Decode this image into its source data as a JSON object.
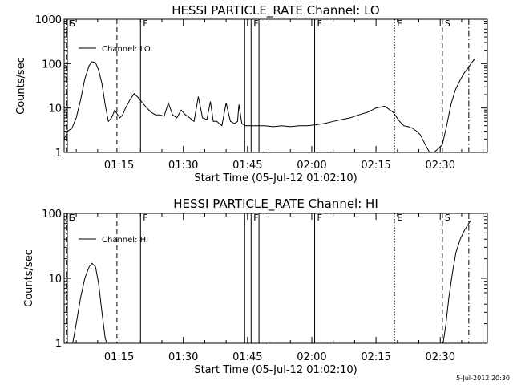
{
  "chart_data": [
    {
      "type": "line",
      "title": "HESSI PARTICLE_RATE Channel: LO",
      "xlabel": "Start Time (05-Jul-12 01:02:10)",
      "ylabel": "Counts/sec",
      "yscale": "log",
      "ylim": [
        1,
        1000
      ],
      "xlim": [
        "01:02:10",
        "02:41:00"
      ],
      "x_ticks": [
        "01:15",
        "01:30",
        "01:45",
        "02:00",
        "02:15",
        "02:30"
      ],
      "y_ticks": [
        "1",
        "10",
        "100",
        "1000"
      ],
      "legend": {
        "position": "top-left",
        "entries": [
          "Channel: LO"
        ]
      },
      "series": [
        {
          "name": "Channel: LO",
          "x": [
            "01:02:10",
            "01:03:00",
            "01:04:00",
            "01:05:00",
            "01:06:00",
            "01:07:00",
            "01:08:00",
            "01:08:40",
            "01:09:30",
            "01:10:15",
            "01:11:00",
            "01:11:45",
            "01:12:30",
            "01:13:15",
            "01:14:00",
            "01:14:40",
            "01:15:10",
            "01:15:50",
            "01:16:30",
            "01:17:30",
            "01:18:30",
            "01:19:30",
            "01:20:30",
            "01:21:30",
            "01:22:30",
            "01:23:30",
            "01:24:30",
            "01:25:30",
            "01:26:30",
            "01:27:30",
            "01:28:30",
            "01:29:30",
            "01:30:30",
            "01:31:30",
            "01:32:30",
            "01:33:30",
            "01:34:30",
            "01:35:30",
            "01:36:20",
            "01:37:00",
            "01:37:50",
            "01:39:00",
            "01:40:00",
            "01:41:00",
            "01:42:00",
            "01:42:40",
            "01:43:00",
            "01:43:40",
            "01:44:30",
            "01:45:30",
            "01:47:00",
            "01:49:00",
            "01:51:00",
            "01:53:00",
            "01:55:00",
            "01:57:00",
            "01:59:00",
            "02:01:00",
            "02:03:00",
            "02:05:00",
            "02:07:00",
            "02:09:00",
            "02:11:00",
            "02:13:00",
            "02:15:00",
            "02:17:00",
            "02:19:00",
            "02:20:30",
            "02:21:30",
            "02:22:30",
            "02:23:30",
            "02:24:30",
            "02:25:20",
            "02:26:30",
            "02:27:30",
            "02:28:30",
            "02:29:30",
            "02:30:30",
            "02:31:30",
            "02:32:30",
            "02:33:30",
            "02:34:30",
            "02:35:30",
            "02:36:30",
            "02:37:30",
            "02:38:10"
          ],
          "values": [
            2,
            3,
            3.5,
            6,
            15,
            45,
            90,
            110,
            105,
            70,
            35,
            12,
            5,
            6,
            9,
            7,
            6,
            7,
            10,
            15,
            21,
            17,
            13,
            10,
            8,
            7,
            7,
            6.5,
            13,
            7,
            6,
            9,
            7,
            6,
            5,
            18,
            6,
            5.5,
            14,
            5,
            5,
            4,
            13,
            5,
            4.5,
            5,
            12,
            4.5,
            4,
            4,
            4,
            4,
            3.8,
            4,
            3.8,
            4,
            4,
            4.2,
            4.5,
            5,
            5.5,
            6,
            7,
            8,
            10,
            11,
            8,
            5,
            4,
            3.8,
            3.5,
            3,
            2.5,
            1.5,
            1,
            1,
            1.2,
            1.5,
            4,
            12,
            25,
            40,
            60,
            80,
            110,
            130
          ]
        }
      ],
      "markers": [
        {
          "label": "E",
          "time": "01:02:40",
          "style": "dash-dot"
        },
        {
          "label": "S",
          "time": "01:02:55",
          "style": "solid"
        },
        {
          "label": "",
          "time": "01:14:30",
          "style": "dashed"
        },
        {
          "label": "F",
          "time": "01:20:00",
          "style": "solid"
        },
        {
          "label": "",
          "time": "01:44:20",
          "style": "solid"
        },
        {
          "label": "F",
          "time": "01:45:50",
          "style": "solid"
        },
        {
          "label": "",
          "time": "01:47:40",
          "style": "solid"
        },
        {
          "label": "F",
          "time": "02:00:40",
          "style": "solid"
        },
        {
          "label": "E",
          "time": "02:19:20",
          "style": "dotted"
        },
        {
          "label": "S",
          "time": "02:30:30",
          "style": "dashed"
        },
        {
          "label": "",
          "time": "02:36:40",
          "style": "dash-dot"
        }
      ]
    },
    {
      "type": "line",
      "title": "HESSI PARTICLE_RATE Channel: HI",
      "xlabel": "Start Time (05-Jul-12 01:02:10)",
      "ylabel": "Counts/sec",
      "yscale": "log",
      "ylim": [
        1,
        100
      ],
      "xlim": [
        "01:02:10",
        "02:41:00"
      ],
      "x_ticks": [
        "01:15",
        "01:30",
        "01:45",
        "02:00",
        "02:15",
        "02:30"
      ],
      "y_ticks": [
        "1",
        "10",
        "100"
      ],
      "legend": {
        "position": "top-left",
        "entries": [
          "Channel: HI"
        ]
      },
      "series": [
        {
          "name": "Channel: HI",
          "x": [
            "01:04:10",
            "01:05:00",
            "01:06:00",
            "01:07:00",
            "01:08:00",
            "01:08:40",
            "01:09:30",
            "01:10:15",
            "01:11:00",
            "01:11:45",
            "01:12:10",
            null,
            "02:30:40",
            "02:31:20",
            "02:32:00",
            "02:32:50",
            "02:33:40",
            "02:34:40",
            "02:35:40",
            "02:36:40",
            "02:37:10"
          ],
          "values": [
            1,
            2,
            5,
            10,
            15,
            17,
            15,
            8,
            3,
            1.2,
            1,
            null,
            1,
            2,
            5,
            12,
            25,
            40,
            55,
            70,
            78
          ]
        }
      ],
      "markers": [
        {
          "label": "E",
          "time": "01:02:40",
          "style": "dash-dot"
        },
        {
          "label": "S",
          "time": "01:02:55",
          "style": "solid"
        },
        {
          "label": "",
          "time": "01:14:30",
          "style": "dashed"
        },
        {
          "label": "F",
          "time": "01:20:00",
          "style": "solid"
        },
        {
          "label": "",
          "time": "01:44:20",
          "style": "solid"
        },
        {
          "label": "F",
          "time": "01:45:50",
          "style": "solid"
        },
        {
          "label": "",
          "time": "01:47:40",
          "style": "solid"
        },
        {
          "label": "F",
          "time": "02:00:40",
          "style": "solid"
        },
        {
          "label": "E",
          "time": "02:19:20",
          "style": "dotted"
        },
        {
          "label": "S",
          "time": "02:30:30",
          "style": "dashed"
        },
        {
          "label": "",
          "time": "02:36:40",
          "style": "dash-dot"
        }
      ]
    }
  ],
  "footer": {
    "timestamp": "5-Jul-2012 20:30"
  }
}
